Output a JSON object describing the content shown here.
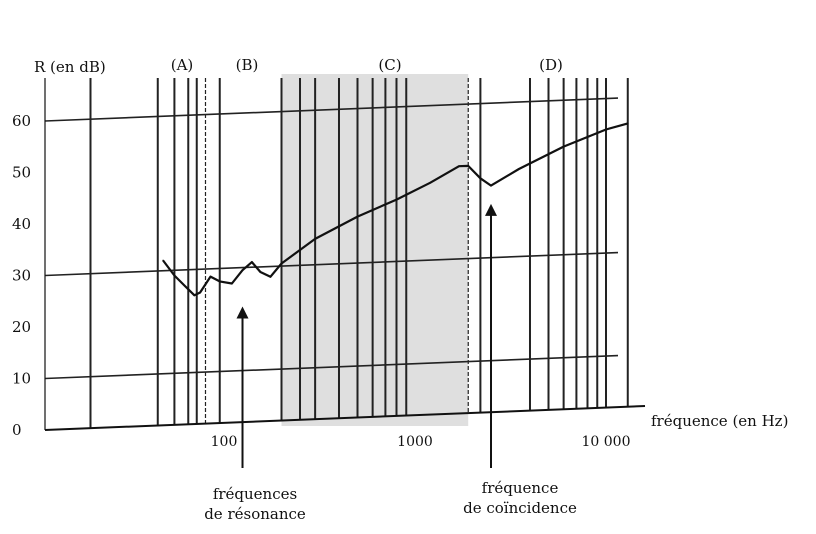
{
  "chart_data": {
    "type": "line",
    "title": "",
    "ylabel": "R (en dB)",
    "xlabel": "fréquence (en Hz)",
    "x_scale": "log",
    "xlim": [
      10,
      15000
    ],
    "ylim": [
      0,
      65
    ],
    "yticks": [
      "0",
      "10",
      "20",
      "30",
      "40",
      "50",
      "60"
    ],
    "xticks": [
      {
        "value": 100,
        "label": "100"
      },
      {
        "value": 1000,
        "label": "1000"
      },
      {
        "value": 10000,
        "label": "10 000"
      }
    ],
    "regions": [
      {
        "label": "(A)",
        "from": 45,
        "to": 75
      },
      {
        "label": "(B)",
        "from": 75,
        "to": 200
      },
      {
        "label": "(C)",
        "from": 200,
        "to": 1900,
        "shaded": true,
        "shade_color": "#d9d9d9"
      },
      {
        "label": "(D)",
        "from": 2000,
        "to": 10000
      }
    ],
    "series": [
      {
        "color": "#111111",
        "x": [
          48,
          55,
          62,
          70,
          75,
          85,
          95,
          110,
          125,
          140,
          155,
          175,
          200,
          300,
          500,
          800,
          1200,
          1700,
          1900,
          2200,
          2500,
          3500,
          6000,
          10000,
          13000
        ],
        "y": [
          32,
          29,
          27,
          25,
          25.5,
          28.5,
          27.5,
          27,
          29.5,
          31,
          29,
          28,
          30.5,
          35,
          39,
          42,
          45,
          48,
          48,
          45.5,
          44,
          47,
          51,
          54,
          55
        ]
      }
    ],
    "annotations": [
      {
        "text_lines": [
          "fréquences",
          "de résonance"
        ],
        "x": 125,
        "y": 24
      },
      {
        "text_lines": [
          "fréquence",
          "de coïncidence"
        ],
        "x": 2500,
        "y": 42
      }
    ],
    "grid": true
  }
}
